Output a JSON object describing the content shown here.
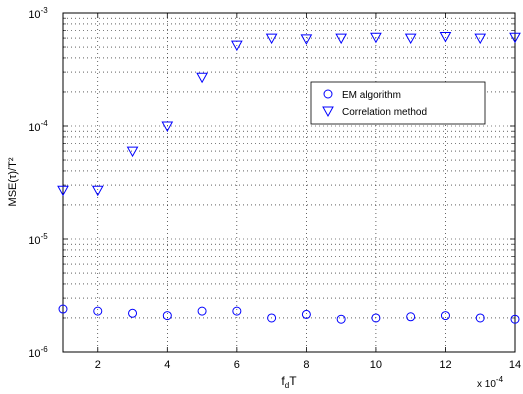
{
  "chart_data": {
    "type": "scatter",
    "xlabel_main": "f",
    "xlabel_sub": "d",
    "xlabel_tail": "T",
    "ylabel": "MSE(τ)/T²",
    "x_multiplier_text": "x 10",
    "x_multiplier_exp": "-4",
    "xlim": [
      1,
      14
    ],
    "ylim": [
      1e-06,
      0.001
    ],
    "y_scale": "log",
    "grid": true,
    "legend_position": "upper-right",
    "x_ticks": [
      2,
      4,
      6,
      8,
      10,
      12,
      14
    ],
    "x_tick_labels": [
      "2",
      "4",
      "6",
      "8",
      "10",
      "12",
      "14"
    ],
    "y_ticks": [
      1e-06,
      1e-05,
      0.0001,
      0.001
    ],
    "y_tick_base": "10",
    "y_tick_exps": [
      "-6",
      "-5",
      "-4",
      "-3"
    ],
    "x": [
      1,
      2,
      3,
      4,
      5,
      6,
      7,
      8,
      9,
      10,
      11,
      12,
      13,
      14
    ],
    "series": [
      {
        "name": "EM algorithm",
        "marker": "circle",
        "color": "#0000ff",
        "values": [
          2.4e-06,
          2.3e-06,
          2.2e-06,
          2.1e-06,
          2.3e-06,
          2.3e-06,
          2e-06,
          2.15e-06,
          1.95e-06,
          2e-06,
          2.05e-06,
          2.1e-06,
          2e-06,
          1.95e-06
        ]
      },
      {
        "name": "Correlation method",
        "marker": "triangle-down",
        "color": "#0000ff",
        "values": [
          2.7e-05,
          2.7e-05,
          6e-05,
          0.0001,
          0.00027,
          0.00052,
          0.0006,
          0.00059,
          0.0006,
          0.00061,
          0.0006,
          0.00062,
          0.0006,
          0.00061
        ]
      }
    ]
  }
}
